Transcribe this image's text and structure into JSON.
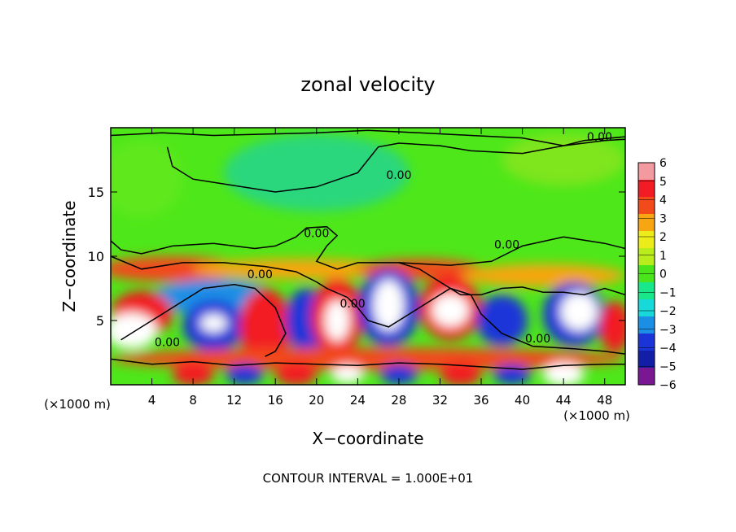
{
  "chart_data": {
    "type": "heatmap",
    "title": "zonal velocity",
    "xlabel": "X−coordinate",
    "ylabel": "Z−coordinate",
    "x_unit_left": "(×1000 m)",
    "x_unit_right": "(×1000 m)",
    "xlim": [
      0,
      50
    ],
    "ylim": [
      0,
      20
    ],
    "xticks": [
      4,
      8,
      12,
      16,
      20,
      24,
      28,
      32,
      36,
      40,
      44,
      48
    ],
    "yticks": [
      5,
      10,
      15
    ],
    "footer": "CONTOUR INTERVAL = 1.000E+01",
    "contour_label": "0.00",
    "contour_label_positions": [
      {
        "x": 28.0,
        "y": 16.0
      },
      {
        "x": 47.5,
        "y": 19.0
      },
      {
        "x": 20.0,
        "y": 11.5
      },
      {
        "x": 14.5,
        "y": 8.3
      },
      {
        "x": 23.5,
        "y": 6.0
      },
      {
        "x": 38.5,
        "y": 10.6
      },
      {
        "x": 5.5,
        "y": 3.0
      },
      {
        "x": 41.5,
        "y": 3.3
      }
    ],
    "colorbar": {
      "levels": [
        6,
        5,
        4,
        3,
        2,
        1,
        0,
        -1,
        -2,
        -3,
        -4,
        -5,
        -6
      ],
      "labels": [
        "6",
        "5",
        "4",
        "3",
        "2",
        "1",
        "0",
        "−1",
        "−2",
        "−3",
        "−4",
        "−5",
        "−6"
      ],
      "colors": [
        "#f29aa0",
        "#f21c24",
        "#f24a1a",
        "#f7a511",
        "#ecec1a",
        "#b8ec1a",
        "#49e51a",
        "#18e78a",
        "#18d9d9",
        "#1a8fe5",
        "#1a34d8",
        "#121ea6",
        "#7a1894"
      ]
    },
    "field": {
      "background": "#4ee71a",
      "regions": [
        {
          "cx": 20,
          "cy": 16.5,
          "rx": 9,
          "ry": 3,
          "color": "#2bd77c"
        },
        {
          "cx": 44,
          "cy": 17.5,
          "rx": 6,
          "ry": 2,
          "color": "#7fe51f"
        },
        {
          "cx": 3,
          "cy": 16,
          "rx": 4,
          "ry": 3,
          "color": "#5ee81a"
        },
        {
          "cx": 6,
          "cy": 9.0,
          "rx": 7,
          "ry": 1.0,
          "color": "#f24a1a"
        },
        {
          "cx": 18,
          "cy": 9.0,
          "rx": 10,
          "ry": 0.8,
          "color": "#f7a511"
        },
        {
          "cx": 30,
          "cy": 9.0,
          "rx": 6,
          "ry": 0.8,
          "color": "#f24a1a"
        },
        {
          "cx": 42,
          "cy": 8.5,
          "rx": 8,
          "ry": 0.9,
          "color": "#f7a511"
        },
        {
          "cx": 10,
          "cy": 6.8,
          "rx": 6,
          "ry": 1.4,
          "color": "#1a8fe5"
        },
        {
          "cx": 3,
          "cy": 5.5,
          "rx": 3,
          "ry": 1.8,
          "color": "#f21c24"
        },
        {
          "cx": 2,
          "cy": 4.2,
          "rx": 2.5,
          "ry": 1.4,
          "color": "#ffffff"
        },
        {
          "cx": 10,
          "cy": 4.6,
          "rx": 3,
          "ry": 2.0,
          "color": "#1a34d8"
        },
        {
          "cx": 10,
          "cy": 4.8,
          "rx": 1.3,
          "ry": 0.7,
          "color": "#ffffff"
        },
        {
          "cx": 15,
          "cy": 4.5,
          "rx": 2.5,
          "ry": 3.0,
          "color": "#f21c24"
        },
        {
          "cx": 19,
          "cy": 5.0,
          "rx": 2.0,
          "ry": 2.5,
          "color": "#1a34d8"
        },
        {
          "cx": 22,
          "cy": 5.3,
          "rx": 2.5,
          "ry": 3.0,
          "color": "#f21c24"
        },
        {
          "cx": 22,
          "cy": 5.0,
          "rx": 1.2,
          "ry": 1.6,
          "color": "#ffffff"
        },
        {
          "cx": 27,
          "cy": 6.0,
          "rx": 3.0,
          "ry": 3.0,
          "color": "#1a34d8"
        },
        {
          "cx": 27,
          "cy": 6.2,
          "rx": 1.5,
          "ry": 2.0,
          "color": "#ffffff"
        },
        {
          "cx": 33,
          "cy": 6.0,
          "rx": 3.0,
          "ry": 2.5,
          "color": "#f21c24"
        },
        {
          "cx": 33,
          "cy": 5.8,
          "rx": 1.8,
          "ry": 1.3,
          "color": "#ffffff"
        },
        {
          "cx": 38,
          "cy": 5.0,
          "rx": 2.5,
          "ry": 2.0,
          "color": "#1a34d8"
        },
        {
          "cx": 45,
          "cy": 5.5,
          "rx": 3.0,
          "ry": 2.5,
          "color": "#1a34d8"
        },
        {
          "cx": 45.5,
          "cy": 5.7,
          "rx": 1.8,
          "ry": 1.5,
          "color": "#ffffff"
        },
        {
          "cx": 49,
          "cy": 4.5,
          "rx": 1.5,
          "ry": 2.0,
          "color": "#f21c24"
        },
        {
          "cx": 25,
          "cy": 2.0,
          "rx": 25,
          "ry": 0.9,
          "color": "#f24a1a"
        },
        {
          "cx": 8,
          "cy": 0.8,
          "rx": 2.0,
          "ry": 0.9,
          "color": "#f21c24"
        },
        {
          "cx": 18,
          "cy": 0.8,
          "rx": 2.0,
          "ry": 0.9,
          "color": "#f21c24"
        },
        {
          "cx": 23,
          "cy": 0.8,
          "rx": 1.6,
          "ry": 0.7,
          "color": "#ffffff"
        },
        {
          "cx": 34,
          "cy": 0.8,
          "rx": 2.0,
          "ry": 0.9,
          "color": "#f21c24"
        },
        {
          "cx": 44,
          "cy": 0.8,
          "rx": 2.0,
          "ry": 0.9,
          "color": "#ffffff"
        },
        {
          "cx": 13,
          "cy": 0.8,
          "rx": 1.8,
          "ry": 0.8,
          "color": "#1a34d8"
        },
        {
          "cx": 28,
          "cy": 0.8,
          "rx": 1.8,
          "ry": 0.8,
          "color": "#1a34d8"
        },
        {
          "cx": 39,
          "cy": 0.8,
          "rx": 1.8,
          "ry": 0.8,
          "color": "#1a34d8"
        }
      ],
      "contours": [
        [
          [
            0,
            19.4
          ],
          [
            5,
            19.6
          ],
          [
            10,
            19.4
          ],
          [
            15,
            19.5
          ],
          [
            20,
            19.6
          ],
          [
            25,
            19.8
          ],
          [
            30,
            19.6
          ],
          [
            35,
            19.4
          ],
          [
            40,
            19.2
          ],
          [
            44,
            18.6
          ],
          [
            46,
            19.0
          ],
          [
            50,
            19.3
          ]
        ],
        [
          [
            5.5,
            18.5
          ],
          [
            6,
            17
          ],
          [
            8,
            16
          ],
          [
            12,
            15.5
          ],
          [
            16,
            15.0
          ],
          [
            20,
            15.4
          ],
          [
            24,
            16.5
          ],
          [
            25,
            17.5
          ],
          [
            26,
            18.5
          ],
          [
            28,
            18.8
          ],
          [
            32,
            18.6
          ],
          [
            35,
            18.2
          ],
          [
            40,
            18.0
          ],
          [
            44,
            18.6
          ],
          [
            48,
            19.0
          ],
          [
            50,
            19.1
          ]
        ],
        [
          [
            0,
            11.2
          ],
          [
            1,
            10.5
          ],
          [
            3,
            10.2
          ],
          [
            6,
            10.8
          ],
          [
            10,
            11.0
          ],
          [
            14,
            10.6
          ],
          [
            16,
            10.8
          ],
          [
            18,
            11.5
          ],
          [
            19,
            12.2
          ],
          [
            21,
            12.3
          ],
          [
            22,
            11.6
          ],
          [
            21,
            10.8
          ],
          [
            20,
            9.6
          ],
          [
            22,
            9.0
          ],
          [
            24,
            9.5
          ],
          [
            28,
            9.5
          ],
          [
            33,
            9.3
          ],
          [
            37,
            9.6
          ],
          [
            40,
            10.8
          ],
          [
            44,
            11.5
          ],
          [
            48,
            11.0
          ],
          [
            50,
            10.6
          ]
        ],
        [
          [
            0,
            10.0
          ],
          [
            3,
            9.0
          ],
          [
            7,
            9.5
          ],
          [
            11,
            9.5
          ],
          [
            15,
            9.2
          ],
          [
            18,
            8.8
          ],
          [
            20,
            8.0
          ],
          [
            21,
            7.5
          ],
          [
            23,
            6.8
          ],
          [
            24,
            6.0
          ],
          [
            25,
            5.0
          ],
          [
            27,
            4.5
          ],
          [
            29,
            5.5
          ],
          [
            31,
            6.5
          ],
          [
            33,
            7.5
          ],
          [
            35,
            7.0
          ],
          [
            36,
            5.5
          ],
          [
            38,
            4.0
          ],
          [
            41,
            3.0
          ],
          [
            45,
            2.8
          ],
          [
            48,
            2.6
          ],
          [
            50,
            2.4
          ]
        ],
        [
          [
            0,
            2.0
          ],
          [
            4,
            1.6
          ],
          [
            8,
            1.8
          ],
          [
            12,
            1.5
          ],
          [
            16,
            1.7
          ],
          [
            20,
            1.6
          ],
          [
            24,
            1.5
          ],
          [
            28,
            1.7
          ],
          [
            32,
            1.6
          ],
          [
            36,
            1.4
          ],
          [
            40,
            1.2
          ],
          [
            44,
            1.5
          ],
          [
            48,
            1.6
          ],
          [
            50,
            1.6
          ]
        ],
        [
          [
            1,
            3.5
          ],
          [
            3,
            4.5
          ],
          [
            5,
            5.5
          ],
          [
            7,
            6.5
          ],
          [
            9,
            7.5
          ],
          [
            12,
            7.8
          ],
          [
            14,
            7.5
          ],
          [
            16,
            6.0
          ],
          [
            17,
            4.0
          ],
          [
            16,
            2.6
          ],
          [
            15,
            2.2
          ]
        ],
        [
          [
            28,
            9.5
          ],
          [
            30,
            9.0
          ],
          [
            32,
            8.0
          ],
          [
            34,
            7.0
          ],
          [
            36,
            7.0
          ],
          [
            38,
            7.5
          ],
          [
            40,
            7.6
          ],
          [
            42,
            7.2
          ],
          [
            44,
            7.2
          ],
          [
            46,
            7.0
          ],
          [
            48,
            7.5
          ],
          [
            50,
            7.0
          ]
        ]
      ]
    }
  }
}
